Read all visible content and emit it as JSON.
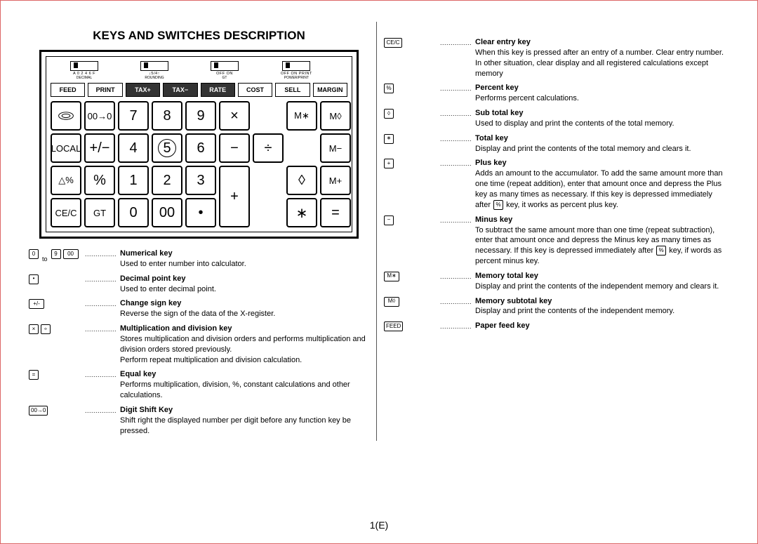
{
  "title": "KEYS AND SWITCHES DESCRIPTION",
  "page_number": "1(E)",
  "colors": {
    "border": "#d66",
    "ink": "#000000",
    "bg": "#ffffff"
  },
  "switches": [
    {
      "labels": "A 0 2 4 6 F",
      "sub": "DECIMAL"
    },
    {
      "labels": "↓5/4↑",
      "sub": "ROUNDING"
    },
    {
      "labels": "OFF ON",
      "sub": "GT"
    },
    {
      "labels": "OFF ON PRINT",
      "sub": "POWER/PRINT"
    }
  ],
  "function_row": [
    {
      "t": "FEED"
    },
    {
      "t": "PRINT"
    },
    {
      "t": "TAX+",
      "sp": true
    },
    {
      "t": "TAX−",
      "sp": true
    },
    {
      "t": "RATE",
      "sp": true
    },
    {
      "t": "COST"
    },
    {
      "t": "SELL"
    },
    {
      "t": "MARGIN"
    }
  ],
  "keys": {
    "r1": [
      "◎",
      "00→0",
      "7",
      "8",
      "9",
      "×",
      "",
      "M∗",
      "M◊"
    ],
    "r2": [
      "LOCAL",
      "+/−",
      "4",
      "⑤",
      "6",
      "−",
      "÷",
      "M−"
    ],
    "r3": [
      "△%",
      "%",
      "1",
      "2",
      "3",
      "+",
      "",
      "◊",
      "M+"
    ],
    "r4": [
      "CE/C",
      "GT",
      "0",
      "00",
      "•",
      "",
      "",
      "∗",
      "="
    ]
  },
  "left_items": [
    {
      "icons": [
        {
          "t": "0"
        },
        {
          "type": "to",
          "t": "to"
        },
        {
          "t": "9"
        },
        {
          "t": "00",
          "w": true
        }
      ],
      "title": "Numerical key",
      "text": "Used to enter number into calculator."
    },
    {
      "icons": [
        {
          "t": "•"
        }
      ],
      "title": "Decimal point key",
      "text": "Used to enter decimal point."
    },
    {
      "icons": [
        {
          "t": "+/-",
          "w": true
        }
      ],
      "title": "Change sign key",
      "text": "Reverse the sign of the data of the X-register."
    },
    {
      "icons": [
        {
          "t": "×"
        },
        {
          "t": "÷"
        }
      ],
      "title": "Multiplication and division key",
      "text": "Stores multiplication and division orders and performs multiplication and division orders stored previously.\nPerform repeat multiplication and division calculation."
    },
    {
      "icons": [
        {
          "t": "="
        }
      ],
      "title": "Equal key",
      "text": "Performs multiplication, division, %, constant calculations and other calculations."
    },
    {
      "icons": [
        {
          "t": "00→0",
          "w2": true
        }
      ],
      "title": "Digit Shift Key",
      "text": "Shift right the displayed number per digit before any function key be pressed."
    }
  ],
  "right_items": [
    {
      "icons": [
        {
          "t": "CE/C",
          "w2": true
        }
      ],
      "title": "Clear entry key",
      "text": "When this key is pressed after an entry of a number. Clear entry number.\nIn other situation, clear display and all registered calculations except memory"
    },
    {
      "icons": [
        {
          "t": "%"
        }
      ],
      "title": "Percent key",
      "text": "Performs percent calculations."
    },
    {
      "icons": [
        {
          "t": "◊"
        }
      ],
      "title": "Sub total key",
      "text": "Used to display and print the contents of the total memory."
    },
    {
      "icons": [
        {
          "t": "∗"
        }
      ],
      "title": "Total key",
      "text": "Display and print the contents of the total memory and clears it."
    },
    {
      "icons": [
        {
          "t": "+"
        }
      ],
      "title": "Plus key",
      "text_html": "Adds an amount to the accumulator. To add the same amount more than one time (repeat addition), enter that amount once and depress the Plus key as many times as necessary. If this key is depressed immediately after <span class='ibox inline'>%</span> key, it works as percent plus key."
    },
    {
      "icons": [
        {
          "t": "−"
        }
      ],
      "title": "Minus key",
      "text_html": "To subtract the same amount more than one time (repeat subtraction), enter that amount once and depress the Minus key as many times as necessary. If this key is depressed immediately after <span class='ibox inline'>%</span> key, if words as percent minus key."
    },
    {
      "icons": [
        {
          "t": "M∗",
          "w": true
        }
      ],
      "title": "Memory total key",
      "text": "Display and print the contents of the independent memory and clears it."
    },
    {
      "icons": [
        {
          "t": "M◊",
          "w": true
        }
      ],
      "title": "Memory subtotal key",
      "text": "Display and print the contents of the independent memory."
    },
    {
      "icons": [
        {
          "t": "FEED",
          "w2": true
        }
      ],
      "title": "Paper feed key",
      "text": ""
    }
  ]
}
